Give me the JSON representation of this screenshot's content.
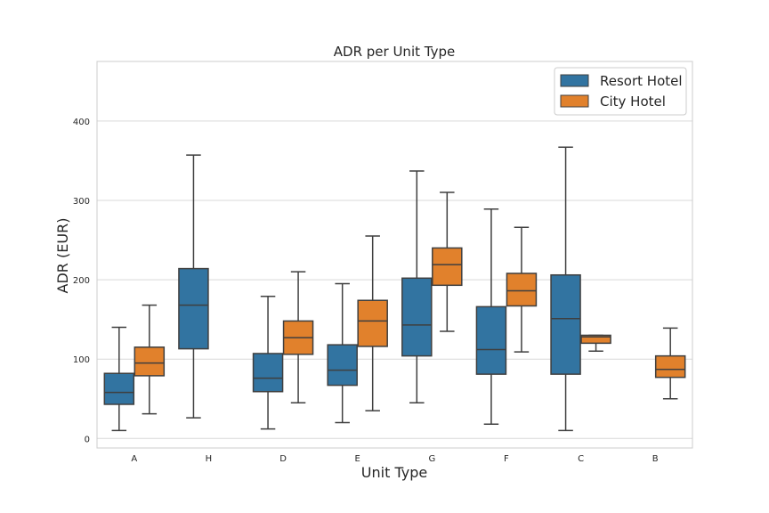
{
  "chart_data": {
    "type": "box",
    "title": "ADR per Unit Type",
    "xlabel": "Unit Type",
    "ylabel": "ADR (EUR)",
    "ylim": [
      -12,
      475
    ],
    "yticks": [
      0,
      100,
      200,
      300,
      400
    ],
    "grid": "horizontal",
    "legend_position": "top-right",
    "categories": [
      "A",
      "H",
      "D",
      "E",
      "G",
      "F",
      "C",
      "B"
    ],
    "series": [
      {
        "name": "Resort Hotel",
        "color": "#3274a1",
        "boxes": [
          {
            "category": "A",
            "whisker_low": 10,
            "q1": 43,
            "median": 58,
            "q3": 82,
            "whisker_high": 140
          },
          {
            "category": "H",
            "whisker_low": 26,
            "q1": 113,
            "median": 168,
            "q3": 214,
            "whisker_high": 357
          },
          {
            "category": "D",
            "whisker_low": 12,
            "q1": 59,
            "median": 76,
            "q3": 107,
            "whisker_high": 179
          },
          {
            "category": "E",
            "whisker_low": 20,
            "q1": 67,
            "median": 86,
            "q3": 118,
            "whisker_high": 195
          },
          {
            "category": "G",
            "whisker_low": 45,
            "q1": 104,
            "median": 143,
            "q3": 202,
            "whisker_high": 337
          },
          {
            "category": "F",
            "whisker_low": 18,
            "q1": 81,
            "median": 112,
            "q3": 166,
            "whisker_high": 289
          },
          {
            "category": "C",
            "whisker_low": 10,
            "q1": 81,
            "median": 151,
            "q3": 206,
            "whisker_high": 367
          }
        ]
      },
      {
        "name": "City Hotel",
        "color": "#e1812c",
        "boxes": [
          {
            "category": "A",
            "whisker_low": 31,
            "q1": 79,
            "median": 95,
            "q3": 115,
            "whisker_high": 168
          },
          {
            "category": "D",
            "whisker_low": 45,
            "q1": 106,
            "median": 127,
            "q3": 148,
            "whisker_high": 210
          },
          {
            "category": "E",
            "whisker_low": 35,
            "q1": 116,
            "median": 148,
            "q3": 174,
            "whisker_high": 255
          },
          {
            "category": "G",
            "whisker_low": 135,
            "q1": 193,
            "median": 219,
            "q3": 240,
            "whisker_high": 310
          },
          {
            "category": "F",
            "whisker_low": 109,
            "q1": 167,
            "median": 186,
            "q3": 208,
            "whisker_high": 266
          },
          {
            "category": "C",
            "whisker_low": 110,
            "q1": 120,
            "median": 128,
            "q3": 130,
            "whisker_high": 130
          },
          {
            "category": "B",
            "whisker_low": 50,
            "q1": 77,
            "median": 87,
            "q3": 104,
            "whisker_high": 139
          }
        ]
      }
    ]
  }
}
